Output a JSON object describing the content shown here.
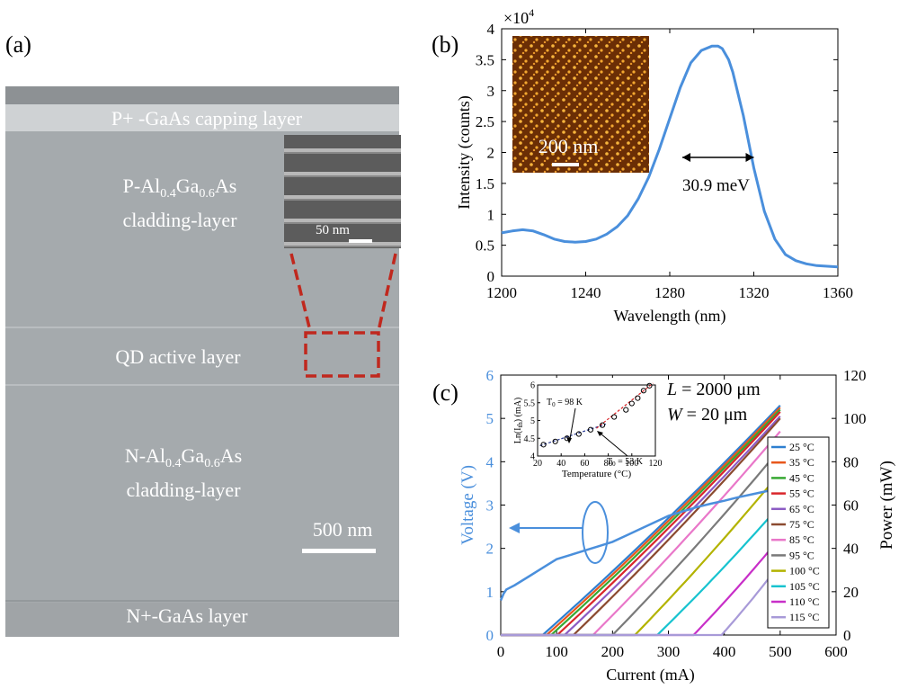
{
  "panel_labels": {
    "a": "(a)",
    "b": "(b)",
    "c": "(c)"
  },
  "panel_a": {
    "layers": {
      "capping": "P+ -GaAs capping layer",
      "p_clad_prefix": "P-Al",
      "p_clad_sub1": "0.4",
      "p_clad_mid": "Ga",
      "p_clad_sub2": "0.6",
      "p_clad_suffix": "As",
      "p_clad_line2": "cladding-layer",
      "qd": "QD active layer",
      "n_clad_prefix": "N-Al",
      "n_clad_sub1": "0.4",
      "n_clad_mid": "Ga",
      "n_clad_sub2": "0.6",
      "n_clad_suffix": "As",
      "n_clad_line2": "cladding-layer",
      "n_plus": "N+-GaAs layer"
    },
    "inset_scalebar": "50 nm",
    "scalebar": "500 nm",
    "colors": {
      "sem_bg": "#a5aaad",
      "zoom_box": "#c0281e"
    }
  },
  "chart_data": [
    {
      "type": "line",
      "panel": "b",
      "xlabel": "Wavelength (nm)",
      "ylabel": "Intensity (counts)",
      "y_multiplier": "×10",
      "y_multiplier_exp": "4",
      "xlim": [
        1200,
        1360
      ],
      "ylim": [
        0,
        4
      ],
      "xticks": [
        "1200",
        "1240",
        "1280",
        "1320",
        "1360"
      ],
      "yticks": [
        "0",
        "0.5",
        "1",
        "1.5",
        "2",
        "2.5",
        "3",
        "3.5",
        "4"
      ],
      "x": [
        1200,
        1205,
        1210,
        1215,
        1220,
        1225,
        1230,
        1235,
        1240,
        1245,
        1250,
        1255,
        1260,
        1265,
        1270,
        1275,
        1280,
        1285,
        1290,
        1295,
        1300,
        1303,
        1305,
        1308,
        1310,
        1315,
        1320,
        1325,
        1330,
        1335,
        1340,
        1345,
        1350,
        1355,
        1360
      ],
      "y": [
        0.7,
        0.73,
        0.75,
        0.73,
        0.67,
        0.6,
        0.56,
        0.55,
        0.56,
        0.6,
        0.68,
        0.8,
        0.98,
        1.25,
        1.6,
        2.05,
        2.55,
        3.05,
        3.45,
        3.65,
        3.72,
        3.72,
        3.68,
        3.5,
        3.3,
        2.6,
        1.75,
        1.05,
        0.6,
        0.35,
        0.25,
        0.2,
        0.17,
        0.16,
        0.15
      ],
      "annotation": "30.9 meV",
      "inset_scalebar": "200 nm",
      "color": "#4a8fdc"
    },
    {
      "type": "line",
      "panel": "c",
      "xlabel": "Current (mA)",
      "ylabel_left": "Voltage (V)",
      "ylabel_right": "Power (mW)",
      "xlim": [
        0,
        600
      ],
      "ylim_left": [
        0,
        6
      ],
      "ylim_right": [
        0,
        120
      ],
      "xticks": [
        "0",
        "100",
        "200",
        "300",
        "400",
        "500",
        "600"
      ],
      "yticks_left": [
        "0",
        "1",
        "2",
        "3",
        "4",
        "5",
        "6"
      ],
      "yticks_right": [
        "0",
        "20",
        "40",
        "60",
        "80",
        "100",
        "120"
      ],
      "annotation_L_var": "L",
      "annotation_L_val": " = 2000 μm",
      "annotation_W_var": "W",
      "annotation_W_val": " = 20 μm",
      "voltage": {
        "x": [
          0,
          5,
          10,
          25,
          50,
          75,
          100,
          125,
          150,
          175,
          200,
          225,
          250,
          275,
          300,
          325,
          350,
          375,
          400,
          425,
          450,
          475,
          500
        ],
        "y": [
          0.8,
          0.95,
          1.05,
          1.15,
          1.35,
          1.55,
          1.75,
          1.85,
          1.95,
          2.05,
          2.15,
          2.3,
          2.45,
          2.6,
          2.75,
          2.85,
          2.95,
          3.03,
          3.1,
          3.18,
          3.25,
          3.32,
          3.4
        ],
        "color": "#4a8fdc"
      },
      "power_series": [
        {
          "name": "25 °C",
          "color": "#2e7fd0",
          "ith": 75,
          "pmax": 106
        },
        {
          "name": "35 °C",
          "color": "#e8571c",
          "ith": 82,
          "pmax": 105
        },
        {
          "name": "45 °C",
          "color": "#36a832",
          "ith": 90,
          "pmax": 104
        },
        {
          "name": "55 °C",
          "color": "#d9262a",
          "ith": 101,
          "pmax": 103
        },
        {
          "name": "65 °C",
          "color": "#8c5cc4",
          "ith": 114,
          "pmax": 101
        },
        {
          "name": "75 °C",
          "color": "#8b4a2f",
          "ith": 130,
          "pmax": 100
        },
        {
          "name": "85 °C",
          "color": "#e977c9",
          "ith": 165,
          "pmax": 94
        },
        {
          "name": "95 °C",
          "color": "#7a7a7a",
          "ith": 200,
          "pmax": 86
        },
        {
          "name": "100 °C",
          "color": "#b3b300",
          "ith": 240,
          "pmax": 75
        },
        {
          "name": "105 °C",
          "color": "#17c3cf",
          "ith": 280,
          "pmax": 60
        },
        {
          "name": "110 °C",
          "color": "#c82fc8",
          "ith": 345,
          "pmax": 45
        },
        {
          "name": "115 °C",
          "color": "#a89ad8",
          "ith": 395,
          "pmax": 33
        }
      ],
      "inset": {
        "xlabel": "Temperature (°C)",
        "ylabel": "Ln(I",
        "ylabel_sub": "th",
        "ylabel_end": ") (mA)",
        "xlim": [
          20,
          120
        ],
        "ylim": [
          4,
          6
        ],
        "xticks": [
          "20",
          "40",
          "60",
          "80",
          "100",
          "120"
        ],
        "yticks": [
          "4",
          "4.5",
          "5",
          "5.5",
          "6"
        ],
        "points_x": [
          25,
          35,
          45,
          55,
          65,
          75,
          85,
          95,
          100,
          105,
          110,
          115
        ],
        "points_y": [
          4.32,
          4.41,
          4.5,
          4.62,
          4.74,
          4.87,
          5.1,
          5.3,
          5.48,
          5.63,
          5.84,
          5.98
        ],
        "label_T0_low": "T",
        "label_T0_low_sub": "0",
        "label_T0_low_val": " = 98 K",
        "label_T0_high": "T",
        "label_T0_high_sub": "0",
        "label_T0_high_val": " = 53 K"
      }
    }
  ]
}
